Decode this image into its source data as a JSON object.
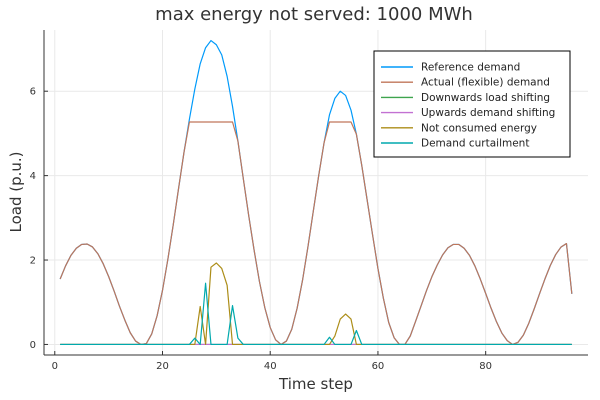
{
  "chart_data": {
    "type": "line",
    "title": "max energy not served: 1000 MWh",
    "xlabel": "Time step",
    "ylabel": "Load (p.u.)",
    "xlim": [
      -2,
      99
    ],
    "ylim": [
      -0.25,
      7.45
    ],
    "xticks": [
      0,
      20,
      40,
      60,
      80
    ],
    "yticks": [
      0,
      2,
      4,
      6
    ],
    "grid": true,
    "legend_position": "top-right",
    "x": [
      1,
      2,
      3,
      4,
      5,
      6,
      7,
      8,
      9,
      10,
      11,
      12,
      13,
      14,
      15,
      16,
      17,
      18,
      19,
      20,
      21,
      22,
      23,
      24,
      25,
      26,
      27,
      28,
      29,
      30,
      31,
      32,
      33,
      34,
      35,
      36,
      37,
      38,
      39,
      40,
      41,
      42,
      43,
      44,
      45,
      46,
      47,
      48,
      49,
      50,
      51,
      52,
      53,
      54,
      55,
      56,
      57,
      58,
      59,
      60,
      61,
      62,
      63,
      64,
      65,
      66,
      67,
      68,
      69,
      70,
      71,
      72,
      73,
      74,
      75,
      76,
      77,
      78,
      79,
      80,
      81,
      82,
      83,
      84,
      85,
      86,
      87,
      88,
      89,
      90,
      91,
      92,
      93,
      94,
      95,
      96
    ],
    "series": [
      {
        "name": "Reference demand",
        "color": "#009AFA",
        "values": [
          1.55,
          1.86,
          2.11,
          2.28,
          2.37,
          2.38,
          2.31,
          2.15,
          1.91,
          1.61,
          1.27,
          0.91,
          0.58,
          0.28,
          0.08,
          0.0,
          0.02,
          0.25,
          0.68,
          1.28,
          2.02,
          2.84,
          3.71,
          4.56,
          5.34,
          6.05,
          6.65,
          7.03,
          7.2,
          7.1,
          6.86,
          6.35,
          5.64,
          4.82,
          3.93,
          3.06,
          2.24,
          1.49,
          0.87,
          0.4,
          0.11,
          0.0,
          0.08,
          0.36,
          0.86,
          1.52,
          2.31,
          3.16,
          4.0,
          4.78,
          5.44,
          5.83,
          6.0,
          5.9,
          5.55,
          4.98,
          4.24,
          3.42,
          2.6,
          1.8,
          1.1,
          0.52,
          0.16,
          0.0,
          0.0,
          0.2,
          0.55,
          0.91,
          1.27,
          1.6,
          1.88,
          2.12,
          2.29,
          2.37,
          2.37,
          2.28,
          2.11,
          1.86,
          1.55,
          1.21,
          0.86,
          0.54,
          0.27,
          0.09,
          0.0,
          0.05,
          0.22,
          0.5,
          0.84,
          1.2,
          1.55,
          1.87,
          2.13,
          2.31,
          2.39,
          1.2
        ]
      },
      {
        "name": "Actual (flexible) demand",
        "color": "#C0765A",
        "values": [
          1.55,
          1.86,
          2.11,
          2.28,
          2.37,
          2.38,
          2.31,
          2.15,
          1.91,
          1.61,
          1.27,
          0.91,
          0.58,
          0.28,
          0.08,
          0.0,
          0.02,
          0.25,
          0.68,
          1.28,
          2.02,
          2.84,
          3.71,
          4.56,
          5.27,
          5.27,
          5.27,
          5.27,
          5.27,
          5.27,
          5.27,
          5.27,
          5.27,
          4.82,
          3.93,
          3.06,
          2.24,
          1.49,
          0.87,
          0.4,
          0.11,
          0.0,
          0.08,
          0.36,
          0.86,
          1.52,
          2.31,
          3.16,
          4.0,
          4.78,
          5.27,
          5.27,
          5.27,
          5.27,
          5.27,
          4.98,
          4.24,
          3.42,
          2.6,
          1.8,
          1.1,
          0.52,
          0.16,
          0.0,
          0.0,
          0.2,
          0.55,
          0.91,
          1.27,
          1.6,
          1.88,
          2.12,
          2.29,
          2.37,
          2.37,
          2.28,
          2.11,
          1.86,
          1.55,
          1.21,
          0.86,
          0.54,
          0.27,
          0.09,
          0.0,
          0.05,
          0.22,
          0.5,
          0.84,
          1.2,
          1.55,
          1.87,
          2.13,
          2.31,
          2.39,
          1.2
        ]
      },
      {
        "name": "Downwards load shifting",
        "color": "#3EA44E",
        "values": [
          0,
          0,
          0,
          0,
          0,
          0,
          0,
          0,
          0,
          0,
          0,
          0,
          0,
          0,
          0,
          0,
          0,
          0,
          0,
          0,
          0,
          0,
          0,
          0,
          0,
          0,
          0,
          0,
          0,
          0,
          0,
          0,
          0,
          0,
          0,
          0,
          0,
          0,
          0,
          0,
          0,
          0,
          0,
          0,
          0,
          0,
          0,
          0,
          0,
          0,
          0,
          0,
          0,
          0,
          0,
          0,
          0,
          0,
          0,
          0,
          0,
          0,
          0,
          0,
          0,
          0,
          0,
          0,
          0,
          0,
          0,
          0,
          0,
          0,
          0,
          0,
          0,
          0,
          0,
          0,
          0,
          0,
          0,
          0,
          0,
          0,
          0,
          0,
          0,
          0,
          0,
          0,
          0,
          0,
          0,
          0
        ]
      },
      {
        "name": "Upwards demand shifting",
        "color": "#C271D2",
        "values": [
          0,
          0,
          0,
          0,
          0,
          0,
          0,
          0,
          0,
          0,
          0,
          0,
          0,
          0,
          0,
          0,
          0,
          0,
          0,
          0,
          0,
          0,
          0,
          0,
          0,
          0,
          0,
          0,
          0,
          0,
          0,
          0,
          0,
          0,
          0,
          0,
          0,
          0,
          0,
          0,
          0,
          0,
          0,
          0,
          0,
          0,
          0,
          0,
          0,
          0,
          0,
          0,
          0,
          0,
          0,
          0,
          0,
          0,
          0,
          0,
          0,
          0,
          0,
          0,
          0,
          0,
          0,
          0,
          0,
          0,
          0,
          0,
          0,
          0,
          0,
          0,
          0,
          0,
          0,
          0,
          0,
          0,
          0,
          0,
          0,
          0,
          0,
          0,
          0,
          0,
          0,
          0,
          0,
          0,
          0,
          0
        ]
      },
      {
        "name": "Not consumed energy",
        "color": "#AC8D18",
        "values": [
          0,
          0,
          0,
          0,
          0,
          0,
          0,
          0,
          0,
          0,
          0,
          0,
          0,
          0,
          0,
          0,
          0,
          0,
          0,
          0,
          0,
          0,
          0,
          0,
          0,
          0,
          0.9,
          0,
          1.83,
          1.93,
          1.8,
          1.4,
          0,
          0,
          0,
          0,
          0,
          0,
          0,
          0,
          0,
          0,
          0,
          0,
          0,
          0,
          0,
          0,
          0,
          0,
          0,
          0.2,
          0.6,
          0.72,
          0.6,
          0,
          0,
          0,
          0,
          0,
          0,
          0,
          0,
          0,
          0,
          0,
          0,
          0,
          0,
          0,
          0,
          0,
          0,
          0,
          0,
          0,
          0,
          0,
          0,
          0,
          0,
          0,
          0,
          0,
          0,
          0,
          0,
          0,
          0,
          0,
          0,
          0,
          0,
          0,
          0,
          0
        ]
      },
      {
        "name": "Demand curtailment",
        "color": "#00A9AD",
        "values": [
          0,
          0,
          0,
          0,
          0,
          0,
          0,
          0,
          0,
          0,
          0,
          0,
          0,
          0,
          0,
          0,
          0,
          0,
          0,
          0,
          0,
          0,
          0,
          0,
          0,
          0.15,
          0,
          1.45,
          0,
          0,
          0,
          0,
          0.92,
          0.15,
          0,
          0,
          0,
          0,
          0,
          0,
          0,
          0,
          0,
          0,
          0,
          0,
          0,
          0,
          0,
          0,
          0.17,
          0,
          0,
          0,
          0,
          0.33,
          0,
          0,
          0,
          0,
          0,
          0,
          0,
          0,
          0,
          0,
          0,
          0,
          0,
          0,
          0,
          0,
          0,
          0,
          0,
          0,
          0,
          0,
          0,
          0,
          0,
          0,
          0,
          0,
          0,
          0,
          0,
          0,
          0,
          0,
          0,
          0,
          0,
          0,
          0,
          0
        ]
      }
    ]
  }
}
